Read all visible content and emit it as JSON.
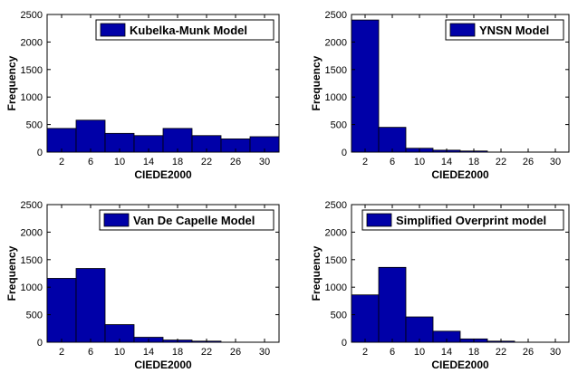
{
  "chart_data": [
    {
      "type": "bar",
      "legend": "Kubelka-Munk Model",
      "categories": [
        "2",
        "6",
        "10",
        "14",
        "18",
        "22",
        "26",
        "30"
      ],
      "values": [
        430,
        580,
        340,
        300,
        430,
        300,
        240,
        280
      ],
      "xlabel": "CIEDE2000",
      "ylabel": "Frequency",
      "ylim": [
        0,
        2500
      ],
      "yticks": [
        "0",
        "500",
        "1000",
        "1500",
        "2000",
        "2500"
      ],
      "bar_color": "#0000a8",
      "legend_placement": "top-right",
      "grid": false
    },
    {
      "type": "bar",
      "legend": "YNSN Model",
      "categories": [
        "2",
        "6",
        "10",
        "14",
        "18",
        "22",
        "26",
        "30"
      ],
      "values": [
        2400,
        450,
        70,
        35,
        20,
        0,
        0,
        0
      ],
      "xlabel": "CIEDE2000",
      "ylabel": "Frequency",
      "ylim": [
        0,
        2500
      ],
      "yticks": [
        "0",
        "500",
        "1000",
        "1500",
        "2000",
        "2500"
      ],
      "bar_color": "#0000a8",
      "legend_placement": "top-right",
      "grid": false
    },
    {
      "type": "bar",
      "legend": "Van De Capelle Model",
      "categories": [
        "2",
        "6",
        "10",
        "14",
        "18",
        "22",
        "26",
        "30"
      ],
      "values": [
        1160,
        1340,
        320,
        90,
        40,
        20,
        0,
        0
      ],
      "xlabel": "CIEDE2000",
      "ylabel": "Frequency",
      "ylim": [
        0,
        2500
      ],
      "yticks": [
        "0",
        "500",
        "1000",
        "1500",
        "2000",
        "2500"
      ],
      "bar_color": "#0000a8",
      "legend_placement": "top-right",
      "grid": false
    },
    {
      "type": "bar",
      "legend": "Simplified Overprint model",
      "categories": [
        "2",
        "6",
        "10",
        "14",
        "18",
        "22",
        "26",
        "30"
      ],
      "values": [
        860,
        1360,
        460,
        200,
        60,
        20,
        0,
        0
      ],
      "xlabel": "CIEDE2000",
      "ylabel": "Frequency",
      "ylim": [
        0,
        2500
      ],
      "yticks": [
        "0",
        "500",
        "1000",
        "1500",
        "2000",
        "2500"
      ],
      "bar_color": "#0000a8",
      "legend_placement": "top-right",
      "grid": false
    }
  ]
}
